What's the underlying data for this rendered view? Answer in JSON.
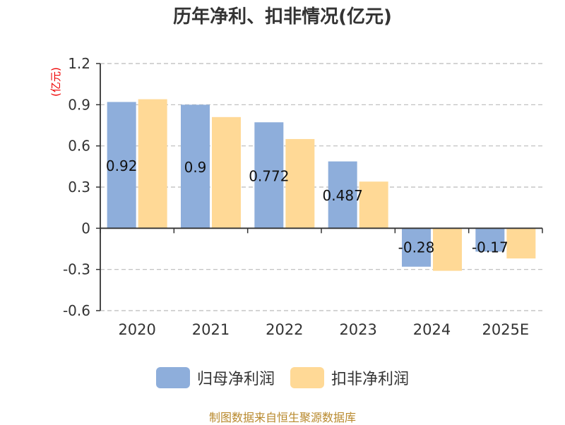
{
  "title": "历年净利、扣非情况(亿元)",
  "source_note": "制图数据来自恒生聚源数据库",
  "colors": {
    "series1": "#8eaedb",
    "series2": "#ffd996",
    "axis": "#333333",
    "grid": "#bbbbbb",
    "ylabel": "#ee0000",
    "source": "#b8892d"
  },
  "chart_data": {
    "type": "bar",
    "title": "历年净利、扣非情况(亿元)",
    "ylabel": "(亿元)",
    "xlabel": "",
    "categories": [
      "2020",
      "2021",
      "2022",
      "2023",
      "2024",
      "2025E"
    ],
    "series": [
      {
        "name": "归母净利润",
        "values": [
          0.92,
          0.9,
          0.772,
          0.487,
          -0.28,
          -0.17
        ],
        "labels": [
          "0.92",
          "0.9",
          "0.772",
          "0.487",
          "-0.28",
          "-0.17"
        ]
      },
      {
        "name": "扣非净利润",
        "values": [
          0.94,
          0.81,
          0.65,
          0.34,
          -0.31,
          -0.22
        ]
      }
    ],
    "ylim": [
      -0.6,
      1.2
    ],
    "yticks": [
      "1.2",
      "0.9",
      "0.6",
      "0.3",
      "0",
      "-0.3",
      "-0.6"
    ],
    "grid": true,
    "legend_position": "bottom"
  }
}
